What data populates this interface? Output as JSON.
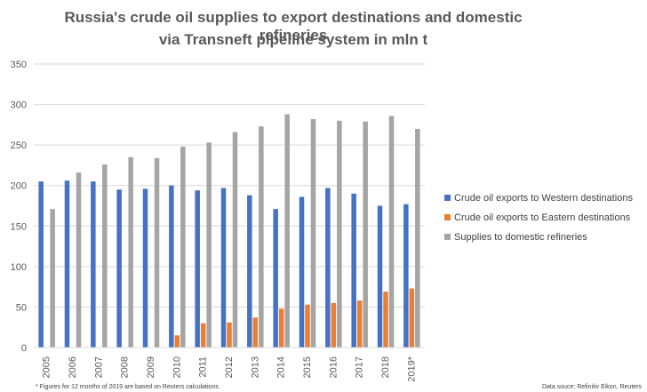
{
  "chart_data": {
    "type": "bar",
    "title": "Russia's crude oil supplies to export destinations and domestic refineries",
    "subtitle": "via Transneft pipeline system in mln t",
    "categories": [
      "2005",
      "2006",
      "2007",
      "2008",
      "2009",
      "2010",
      "2011",
      "2012",
      "2013",
      "2014",
      "2015",
      "2016",
      "2017",
      "2018",
      "2019*"
    ],
    "series": [
      {
        "name": "Crude oil exports to Western destinations",
        "color": "#4472c4",
        "values": [
          205,
          206,
          205,
          195,
          196,
          200,
          194,
          197,
          188,
          171,
          186,
          197,
          190,
          175,
          177
        ]
      },
      {
        "name": "Crude oil exports to Eastern destinations",
        "color": "#ed7d31",
        "values": [
          0,
          0,
          0,
          0,
          0,
          15,
          30,
          31,
          37,
          48,
          53,
          55,
          58,
          69,
          73
        ]
      },
      {
        "name": "Supplies to domestic refineries",
        "color": "#a5a5a5",
        "values": [
          171,
          216,
          226,
          235,
          234,
          248,
          253,
          266,
          273,
          288,
          282,
          280,
          279,
          286,
          270
        ]
      }
    ],
    "ylim": [
      0,
      350
    ],
    "yticks": [
      0,
      50,
      100,
      150,
      200,
      250,
      300,
      350
    ],
    "grid": true,
    "legend_position": "right",
    "xlabel": "",
    "ylabel": ""
  },
  "footnotes": {
    "left": "* Figures for 12 months of 2019 are based on Reuters calculations",
    "right": "Data souce: Refinitiv Eikon, Reuters"
  }
}
